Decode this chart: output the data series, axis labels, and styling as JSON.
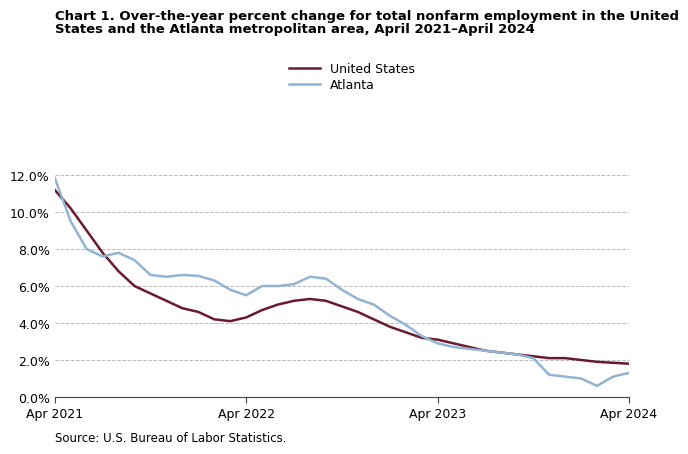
{
  "title_line1": "Chart 1. Over-the-year percent change for total nonfarm employment in the United",
  "title_line2": "States and the Atlanta metropolitan area, April 2021–April 2024",
  "source": "Source: U.S. Bureau of Labor Statistics.",
  "us_data": [
    11.2,
    10.2,
    9.0,
    7.8,
    6.8,
    6.0,
    5.6,
    5.2,
    4.8,
    4.6,
    4.2,
    4.1,
    4.3,
    4.7,
    5.0,
    5.2,
    5.3,
    5.2,
    4.9,
    4.6,
    4.2,
    3.8,
    3.5,
    3.2,
    3.1,
    2.9,
    2.7,
    2.5,
    2.4,
    2.3,
    2.2,
    2.1,
    2.1,
    2.0,
    1.9,
    1.85,
    1.8
  ],
  "atl_data": [
    11.85,
    9.5,
    8.0,
    7.6,
    7.8,
    7.4,
    6.6,
    6.5,
    6.6,
    6.55,
    6.3,
    5.8,
    5.5,
    6.0,
    6.0,
    6.1,
    6.5,
    6.4,
    5.8,
    5.3,
    5.0,
    4.4,
    3.9,
    3.3,
    2.9,
    2.7,
    2.6,
    2.5,
    2.4,
    2.3,
    2.1,
    1.2,
    1.1,
    1.0,
    0.6,
    1.1,
    1.3
  ],
  "us_color": "#6b1a2e",
  "atl_color": "#92b4d4",
  "xtick_labels": [
    "Apr 2021",
    "Apr 2022",
    "Apr 2023",
    "Apr 2024"
  ],
  "xtick_positions": [
    0,
    12,
    24,
    36
  ],
  "ytick_labels": [
    "0.0%",
    "2.0%",
    "4.0%",
    "6.0%",
    "8.0%",
    "10.0%",
    "12.0%"
  ],
  "ytick_values": [
    0.0,
    2.0,
    4.0,
    6.0,
    8.0,
    10.0,
    12.0
  ],
  "ylim": [
    0.0,
    12.6
  ],
  "legend_labels": [
    "United States",
    "Atlanta"
  ],
  "bg_color": "#ffffff",
  "line_width": 1.8,
  "title_fontsize": 9.5,
  "tick_fontsize": 9,
  "source_fontsize": 8.5
}
